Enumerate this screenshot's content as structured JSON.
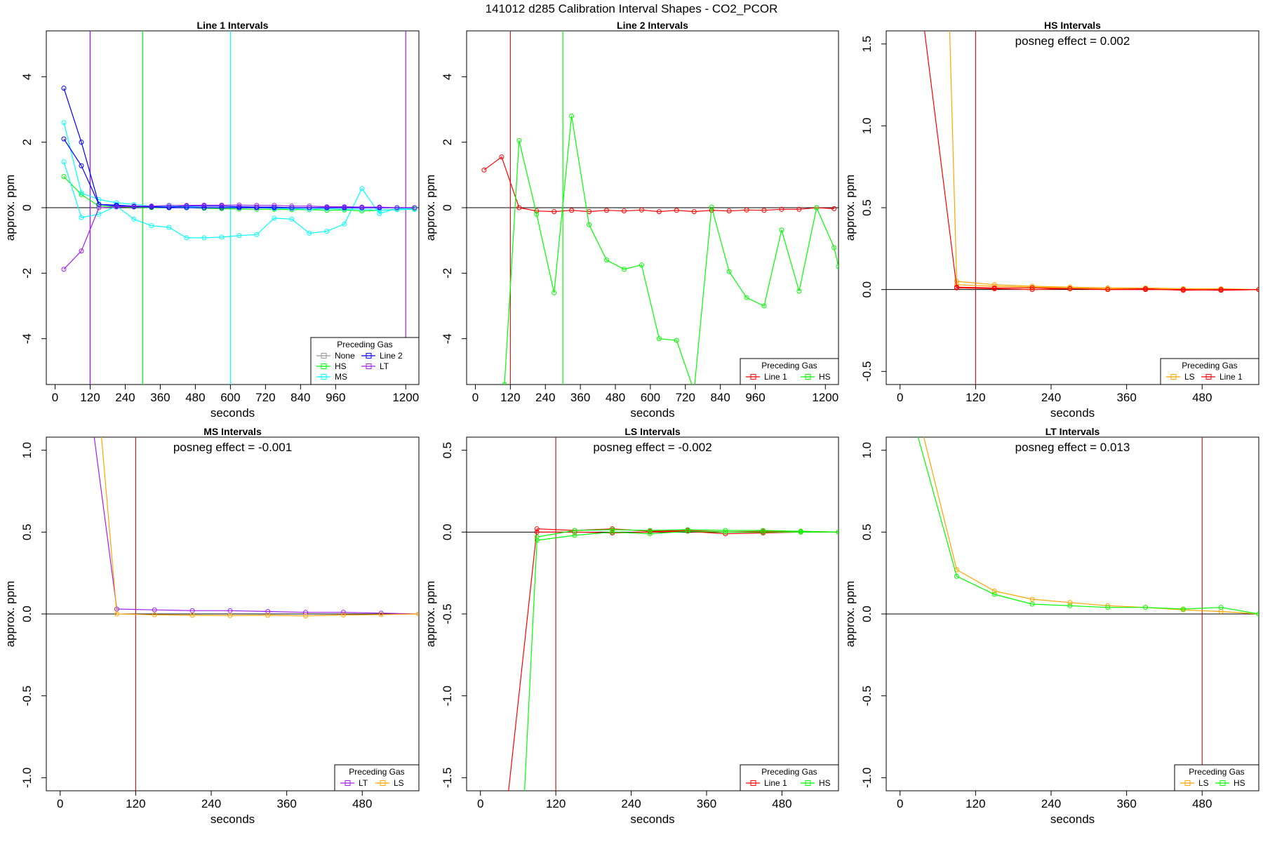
{
  "figure": {
    "main_title": "141012  d285   Calibration Interval Shapes - CO2_PCOR"
  },
  "chart_data": [
    {
      "type": "line",
      "title": "Line 1 Intervals",
      "xlabel": "seconds",
      "ylabel": "approx. ppm",
      "xlim": [
        -30,
        1245
      ],
      "ylim": [
        -5.4,
        5.4
      ],
      "xticks": [
        0,
        120,
        240,
        360,
        480,
        600,
        720,
        840,
        960,
        1200
      ],
      "yticks": [
        -4,
        -2,
        0,
        2,
        4
      ],
      "vlines": [
        {
          "x": 120,
          "color": "#0000ff"
        },
        {
          "x": 120,
          "color": "#a020f0"
        },
        {
          "x": 300,
          "color": "#00ff00"
        },
        {
          "x": 600,
          "color": "#00ffff"
        },
        {
          "x": 1200,
          "color": "#a020f0"
        }
      ],
      "legend": {
        "title": "Preceding Gas",
        "position": "bottom-right",
        "columns": 2
      },
      "series": [
        {
          "name": "None",
          "color": "#999999",
          "x": [],
          "y": []
        },
        {
          "name": "HS",
          "color": "#00ff00",
          "x": [
            30,
            90,
            150,
            210,
            270,
            330,
            390,
            450,
            510,
            570,
            630,
            690,
            750,
            810,
            870,
            930,
            990,
            1050,
            1110,
            1170,
            1230
          ],
          "y": [
            0.95,
            0.4,
            0.05,
            0.03,
            0.02,
            0.0,
            0.0,
            0.01,
            -0.02,
            -0.03,
            -0.04,
            -0.05,
            -0.05,
            -0.06,
            -0.06,
            -0.08,
            -0.07,
            -0.1,
            -0.08,
            -0.05,
            -0.03
          ]
        },
        {
          "name": "MS",
          "color": "#00ffff",
          "x": [
            30,
            90,
            150,
            210,
            270,
            330,
            390,
            450,
            510,
            570,
            630,
            690,
            750,
            810,
            870,
            930,
            990,
            1050,
            1110,
            1170,
            1230
          ],
          "y": [
            2.6,
            0.45,
            0.25,
            0.15,
            0.1,
            0.05,
            0.05,
            0.03,
            0.0,
            0.0,
            0.02,
            0.0,
            -0.02,
            -0.03,
            -0.05,
            -0.03,
            -0.05,
            -0.05,
            -0.08,
            -0.06,
            -0.05
          ]
        },
        {
          "name": "MS",
          "color": "#00ffff",
          "x": [
            30,
            90,
            150,
            210,
            270,
            330,
            390,
            450,
            510,
            570,
            630,
            690,
            750,
            810,
            870,
            930,
            990,
            1050,
            1110,
            1170,
            1230
          ],
          "y": [
            1.4,
            -0.3,
            -0.2,
            0.05,
            -0.35,
            -0.55,
            -0.6,
            -0.92,
            -0.92,
            -0.9,
            -0.85,
            -0.82,
            -0.32,
            -0.35,
            -0.78,
            -0.72,
            -0.5,
            0.58,
            -0.18,
            -0.02,
            -0.05
          ]
        },
        {
          "name": "Line 2",
          "color": "#0000ff",
          "x": [
            30,
            90,
            150,
            210,
            270,
            330,
            390,
            450,
            510,
            570,
            630,
            690,
            750,
            810,
            870,
            930,
            990,
            1050,
            1110,
            1170,
            1230
          ],
          "y": [
            3.65,
            2.0,
            0.1,
            0.08,
            0.05,
            0.03,
            0.02,
            0.05,
            0.05,
            0.05,
            0.03,
            0.02,
            0.02,
            0.0,
            0.0,
            0.0,
            0.0,
            0.0,
            0.0,
            0.0,
            0.0
          ]
        },
        {
          "name": "Line 2",
          "color": "#0000ff",
          "x": [
            30,
            90,
            150,
            210,
            270,
            330,
            390,
            450,
            510,
            570,
            630,
            690,
            750,
            810,
            870,
            930,
            990,
            1050,
            1110,
            1170,
            1230
          ],
          "y": [
            2.1,
            1.28,
            0.1,
            0.05,
            0.03,
            0.02,
            0.0,
            0.0,
            0.0,
            0.0,
            0.0,
            0.0,
            0.0,
            0.0,
            0.0,
            0.0,
            0.0,
            0.0,
            0.0,
            0.0,
            0.0
          ]
        },
        {
          "name": "LT",
          "color": "#a020f0",
          "x": [
            30,
            90,
            150,
            210,
            270,
            330,
            390,
            450,
            510,
            570,
            630,
            690,
            750,
            810,
            870,
            930,
            990,
            1050,
            1110,
            1170,
            1230
          ],
          "y": [
            -1.88,
            -1.32,
            0.0,
            0.02,
            0.05,
            0.05,
            0.07,
            0.07,
            0.08,
            0.08,
            0.08,
            0.07,
            0.07,
            0.05,
            0.05,
            0.03,
            0.03,
            0.02,
            0.02,
            0.0,
            0.0
          ]
        }
      ]
    },
    {
      "type": "line",
      "title": "Line 2 Intervals",
      "xlabel": "seconds",
      "ylabel": "approx. ppm",
      "xlim": [
        -30,
        1245
      ],
      "ylim": [
        -5.4,
        5.4
      ],
      "xticks": [
        0,
        120,
        240,
        360,
        480,
        600,
        720,
        840,
        960,
        1200
      ],
      "yticks": [
        -4,
        -2,
        0,
        2,
        4
      ],
      "vlines": [
        {
          "x": 120,
          "color": "#b22222"
        },
        {
          "x": 300,
          "color": "#00ff00"
        }
      ],
      "legend": {
        "title": "Preceding Gas",
        "position": "bottom-right",
        "columns": 2
      },
      "series": [
        {
          "name": "Line 1",
          "color": "#ff0000",
          "x": [
            30,
            90,
            150,
            210,
            270,
            330,
            390,
            450,
            510,
            570,
            630,
            690,
            750,
            810,
            870,
            930,
            990,
            1050,
            1110,
            1170,
            1230
          ],
          "y": [
            1.15,
            1.55,
            0.0,
            -0.1,
            -0.12,
            -0.08,
            -0.12,
            -0.08,
            -0.1,
            -0.07,
            -0.12,
            -0.08,
            -0.12,
            -0.08,
            -0.1,
            -0.07,
            -0.08,
            -0.05,
            -0.05,
            0.0,
            -0.03
          ]
        },
        {
          "name": "HS",
          "color": "#00ff00",
          "x": [
            100,
            150,
            210,
            270,
            330,
            390,
            450,
            510,
            570,
            630,
            690,
            750,
            810,
            870,
            930,
            990,
            1050,
            1110,
            1170,
            1230,
            1245
          ],
          "y": [
            -5.4,
            2.05,
            -0.2,
            -2.6,
            2.8,
            -0.52,
            -1.6,
            -1.88,
            -1.75,
            -4.0,
            -4.05,
            -5.6,
            0.02,
            -1.95,
            -2.75,
            -3.0,
            -0.68,
            -2.55,
            0.0,
            -1.22,
            -1.8
          ]
        }
      ]
    },
    {
      "type": "line",
      "title": "HS Intervals",
      "xlabel": "seconds",
      "ylabel": "approx. ppm",
      "annotation": "posneg effect = 0.002",
      "xlim": [
        -22,
        570
      ],
      "ylim": [
        -0.58,
        1.58
      ],
      "xticks": [
        0,
        120,
        240,
        360,
        480
      ],
      "yticks": [
        -0.5,
        0.0,
        0.5,
        1.0,
        1.5
      ],
      "vlines": [
        {
          "x": 120,
          "color": "#b22222"
        }
      ],
      "legend": {
        "title": "Preceding Gas",
        "position": "bottom-right",
        "columns": 2
      },
      "series": [
        {
          "name": "LS",
          "color": "#ffa500",
          "x": [
            78,
            90,
            150,
            210,
            270,
            330,
            390,
            450,
            510,
            570
          ],
          "y": [
            1.7,
            0.05,
            0.03,
            0.02,
            0.015,
            0.01,
            0.01,
            0.005,
            0.005,
            0.0
          ]
        },
        {
          "name": "LS",
          "color": "#ffa500",
          "x": [
            90,
            150,
            210,
            270,
            330,
            390,
            450,
            510,
            570
          ],
          "y": [
            0.03,
            0.02,
            0.015,
            0.01,
            0.005,
            0.005,
            0.0,
            0.0,
            0.0
          ]
        },
        {
          "name": "Line 1",
          "color": "#ff0000",
          "x": [
            35,
            90,
            150,
            210,
            270,
            330,
            390,
            450,
            510,
            570
          ],
          "y": [
            1.7,
            0.01,
            0.005,
            0.0,
            0.005,
            0.0,
            0.0,
            0.0,
            -0.005,
            0.0
          ]
        },
        {
          "name": "Line 1",
          "color": "#ff0000",
          "x": [
            90,
            150,
            210,
            270,
            330,
            390,
            450,
            510,
            570
          ],
          "y": [
            0.015,
            0.01,
            0.01,
            0.005,
            0.0,
            0.005,
            -0.005,
            0.0,
            0.0
          ]
        }
      ]
    },
    {
      "type": "line",
      "title": "MS Intervals",
      "xlabel": "seconds",
      "ylabel": "approx. ppm",
      "annotation": "posneg effect = -0.001",
      "xlim": [
        -22,
        570
      ],
      "ylim": [
        -1.08,
        1.08
      ],
      "xticks": [
        0,
        120,
        240,
        360,
        480
      ],
      "yticks": [
        -1.0,
        -0.5,
        0.0,
        0.5,
        1.0
      ],
      "vlines": [
        {
          "x": 120,
          "color": "#b22222"
        }
      ],
      "legend": {
        "title": "Preceding Gas",
        "position": "bottom-right",
        "columns": 2
      },
      "series": [
        {
          "name": "LT",
          "color": "#a020f0",
          "x": [
            50,
            90,
            150,
            210,
            270,
            330,
            390,
            450,
            510,
            570
          ],
          "y": [
            1.2,
            0.03,
            0.025,
            0.02,
            0.02,
            0.015,
            0.01,
            0.01,
            0.005,
            0.0
          ]
        },
        {
          "name": "LS",
          "color": "#ffa500",
          "x": [
            63,
            90,
            150,
            210,
            270,
            330,
            390,
            450,
            510,
            570
          ],
          "y": [
            1.2,
            0.0,
            -0.005,
            -0.008,
            -0.01,
            -0.008,
            -0.012,
            -0.006,
            -0.004,
            0.0
          ]
        }
      ]
    },
    {
      "type": "line",
      "title": "LS Intervals",
      "xlabel": "seconds",
      "ylabel": "approx. ppm",
      "annotation": "posneg effect = -0.002",
      "xlim": [
        -22,
        570
      ],
      "ylim": [
        -1.58,
        0.58
      ],
      "xticks": [
        0,
        120,
        240,
        360,
        480
      ],
      "yticks": [
        -1.5,
        -1.0,
        -0.5,
        0.0,
        0.5
      ],
      "vlines": [
        {
          "x": 120,
          "color": "#b22222"
        }
      ],
      "legend": {
        "title": "Preceding Gas",
        "position": "bottom-right",
        "columns": 2
      },
      "series": [
        {
          "name": "Line 1",
          "color": "#ff0000",
          "x": [
            40,
            90,
            150,
            210,
            270,
            330,
            390,
            450,
            510,
            570
          ],
          "y": [
            -1.75,
            0.02,
            0.01,
            0.02,
            0.005,
            0.01,
            0.0,
            0.005,
            0.005,
            0.0
          ]
        },
        {
          "name": "Line 1",
          "color": "#ff0000",
          "x": [
            90,
            150,
            210,
            270,
            330,
            390,
            450,
            510,
            570
          ],
          "y": [
            0.0,
            0.0,
            -0.005,
            0.0,
            0.005,
            -0.01,
            -0.005,
            0.0,
            0.0
          ]
        },
        {
          "name": "HS",
          "color": "#00ff00",
          "x": [
            68,
            90,
            150,
            210,
            270,
            330,
            390,
            450,
            510,
            570
          ],
          "y": [
            -1.75,
            -0.05,
            -0.02,
            0.0,
            -0.01,
            0.005,
            0.0,
            0.0,
            0.0,
            0.0
          ]
        },
        {
          "name": "HS",
          "color": "#00ff00",
          "x": [
            90,
            150,
            210,
            270,
            330,
            390,
            450,
            510,
            570
          ],
          "y": [
            -0.03,
            0.01,
            0.015,
            0.01,
            0.015,
            0.01,
            0.01,
            0.005,
            0.0
          ]
        }
      ]
    },
    {
      "type": "line",
      "title": "LT Intervals",
      "xlabel": "seconds",
      "ylabel": "approx. ppm",
      "annotation": "posneg effect = 0.013",
      "xlim": [
        -22,
        570
      ],
      "ylim": [
        -1.08,
        1.08
      ],
      "xticks": [
        0,
        120,
        240,
        360,
        480
      ],
      "yticks": [
        -1.0,
        -0.5,
        0.0,
        0.5,
        1.0
      ],
      "vlines": [
        {
          "x": 480,
          "color": "#b22222"
        }
      ],
      "legend": {
        "title": "Preceding Gas",
        "position": "bottom-right",
        "columns": 2
      },
      "series": [
        {
          "name": "LS",
          "color": "#ffa500",
          "x": [
            30,
            90,
            150,
            210,
            270,
            330,
            390,
            450,
            510,
            570
          ],
          "y": [
            1.2,
            0.27,
            0.14,
            0.09,
            0.07,
            0.05,
            0.04,
            0.025,
            0.015,
            0.0
          ]
        },
        {
          "name": "HS",
          "color": "#00ff00",
          "x": [
            20,
            90,
            150,
            210,
            270,
            330,
            390,
            450,
            510,
            570
          ],
          "y": [
            1.2,
            0.23,
            0.12,
            0.06,
            0.05,
            0.04,
            0.04,
            0.03,
            0.04,
            0.0
          ]
        }
      ]
    }
  ]
}
